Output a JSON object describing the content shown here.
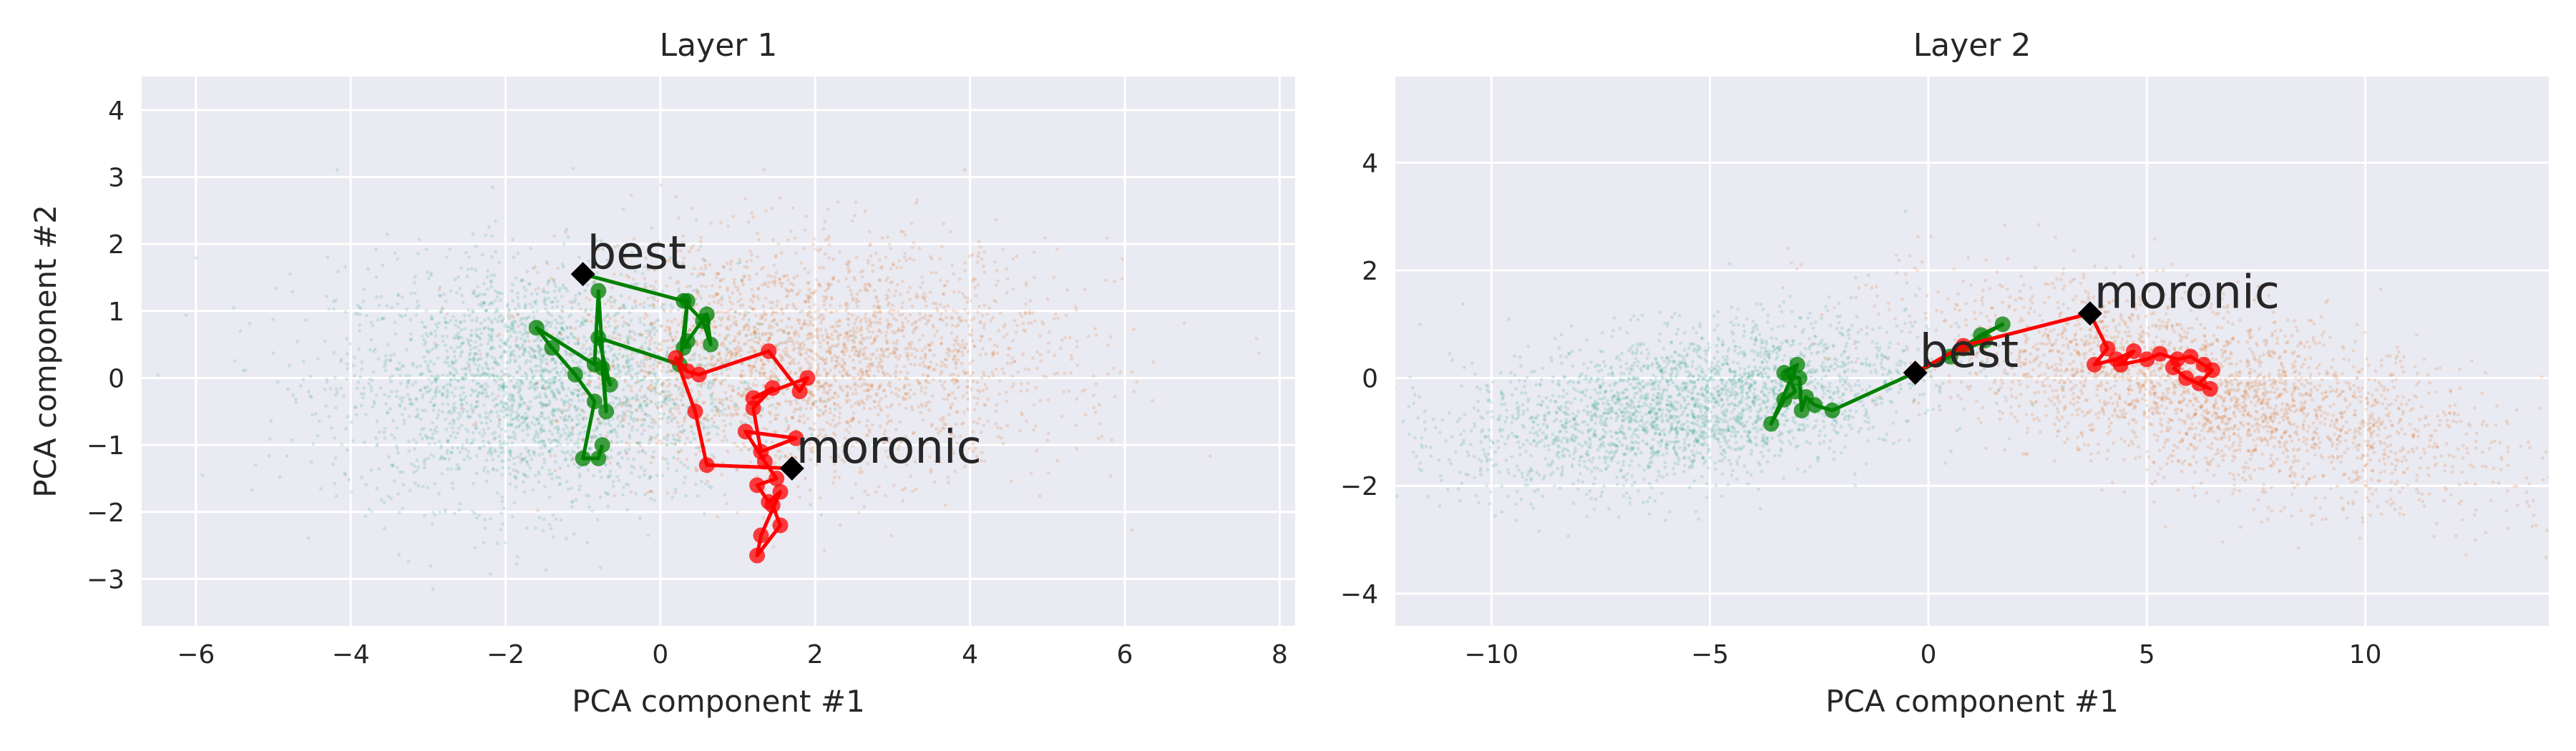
{
  "colors": {
    "axes_bg": "#EAEAF2",
    "grid": "#FFFFFF",
    "teal_cloud": "#1b9e77",
    "orange_cloud": "#d95f02",
    "green_path": "#008000",
    "red_path": "#FF0000",
    "marker": "#000000",
    "text": "#262626"
  },
  "chart_data": [
    {
      "type": "scatter",
      "title": "Layer 1",
      "xlabel": "PCA component #1",
      "ylabel": "PCA component #2",
      "xlim": [
        -6.7,
        8.2
      ],
      "ylim": [
        -3.7,
        4.5
      ],
      "xticks": [
        -6,
        -4,
        -2,
        0,
        2,
        4,
        6,
        8
      ],
      "yticks": [
        -3,
        -2,
        -1,
        0,
        1,
        2,
        3,
        4
      ],
      "grid": true,
      "clouds": [
        {
          "color": "teal",
          "center": [
            -1.6,
            -0.1
          ],
          "spread": [
            1.3,
            0.9
          ]
        },
        {
          "color": "orange",
          "center": [
            2.0,
            0.3
          ],
          "spread": [
            1.6,
            0.85
          ]
        }
      ],
      "series": [
        {
          "color": "green",
          "points": [
            [
              -1.0,
              1.55
            ],
            [
              0.3,
              1.15
            ],
            [
              0.55,
              0.85
            ],
            [
              0.65,
              0.5
            ],
            [
              0.6,
              0.95
            ],
            [
              0.35,
              0.55
            ],
            [
              0.3,
              0.45
            ],
            [
              0.35,
              1.15
            ],
            [
              0.25,
              0.2
            ],
            [
              -0.8,
              0.6
            ],
            [
              -0.65,
              -0.1
            ],
            [
              -0.75,
              0.15
            ],
            [
              -0.7,
              -0.5
            ],
            [
              -0.8,
              1.3
            ],
            [
              -0.85,
              0.2
            ],
            [
              -1.6,
              0.75
            ],
            [
              -1.4,
              0.45
            ],
            [
              -1.1,
              0.05
            ],
            [
              -0.85,
              -0.35
            ],
            [
              -1.0,
              -1.2
            ],
            [
              -0.8,
              -1.2
            ],
            [
              -0.75,
              -1.0
            ]
          ]
        },
        {
          "color": "red",
          "points": [
            [
              1.7,
              -1.35
            ],
            [
              0.6,
              -1.3
            ],
            [
              0.45,
              -0.5
            ],
            [
              0.2,
              0.3
            ],
            [
              0.35,
              0.1
            ],
            [
              0.5,
              0.05
            ],
            [
              1.4,
              0.4
            ],
            [
              1.8,
              -0.2
            ],
            [
              1.9,
              0.0
            ],
            [
              1.2,
              -0.3
            ],
            [
              1.45,
              -0.15
            ],
            [
              1.2,
              -0.45
            ],
            [
              1.3,
              -1.1
            ],
            [
              1.75,
              -0.9
            ],
            [
              1.1,
              -0.8
            ],
            [
              1.35,
              -1.25
            ],
            [
              1.5,
              -1.5
            ],
            [
              1.25,
              -1.6
            ],
            [
              1.4,
              -1.85
            ],
            [
              1.55,
              -1.7
            ],
            [
              1.3,
              -2.35
            ],
            [
              1.25,
              -2.65
            ],
            [
              1.55,
              -2.2
            ],
            [
              1.45,
              -1.9
            ]
          ]
        }
      ],
      "annotations": [
        {
          "text": "best",
          "x": -1.0,
          "y": 1.55,
          "color": "green"
        },
        {
          "text": "moronic",
          "x": 1.7,
          "y": -1.35,
          "color": "red"
        }
      ]
    },
    {
      "type": "scatter",
      "title": "Layer 2",
      "xlabel": "PCA component #1",
      "ylabel": "",
      "xlim": [
        -12.2,
        14.2
      ],
      "ylim": [
        -4.6,
        5.6
      ],
      "xticks": [
        -10,
        -5,
        0,
        5,
        10
      ],
      "yticks": [
        -4,
        -2,
        0,
        2,
        4
      ],
      "grid": true,
      "clouds": [
        {
          "color": "teal",
          "center": [
            -5.5,
            -0.5
          ],
          "spread": [
            2.6,
            0.7
          ]
        },
        {
          "color": "orange",
          "center": [
            6.5,
            -0.3
          ],
          "spread": [
            3.2,
            0.8
          ]
        }
      ],
      "series": [
        {
          "color": "green",
          "points": [
            [
              -0.3,
              0.1
            ],
            [
              1.7,
              1.0
            ],
            [
              1.2,
              0.8
            ],
            [
              0.8,
              0.55
            ],
            [
              1.3,
              0.7
            ],
            [
              0.5,
              0.4
            ],
            [
              -2.2,
              -0.6
            ],
            [
              -2.6,
              -0.5
            ],
            [
              -2.8,
              -0.35
            ],
            [
              -2.9,
              -0.6
            ],
            [
              -2.95,
              0.0
            ],
            [
              -3.2,
              0.05
            ],
            [
              -3.05,
              -0.25
            ],
            [
              -3.3,
              -0.4
            ],
            [
              -3.6,
              -0.85
            ],
            [
              -3.0,
              0.25
            ],
            [
              -3.3,
              0.1
            ]
          ]
        },
        {
          "color": "red",
          "points": [
            [
              -0.3,
              0.1
            ],
            [
              0.8,
              0.6
            ],
            [
              3.7,
              1.2
            ],
            [
              4.1,
              0.55
            ],
            [
              3.8,
              0.25
            ],
            [
              4.3,
              0.35
            ],
            [
              4.7,
              0.5
            ],
            [
              4.4,
              0.25
            ],
            [
              5.0,
              0.35
            ],
            [
              5.3,
              0.45
            ],
            [
              5.7,
              0.35
            ],
            [
              6.0,
              0.4
            ],
            [
              6.3,
              0.25
            ],
            [
              6.5,
              0.15
            ],
            [
              6.2,
              -0.1
            ],
            [
              6.45,
              -0.2
            ],
            [
              5.9,
              0.0
            ],
            [
              5.6,
              0.2
            ]
          ]
        }
      ],
      "annotations": [
        {
          "text": "best",
          "x": -0.3,
          "y": 0.1,
          "color": "green"
        },
        {
          "text": "moronic",
          "x": 3.7,
          "y": 1.2,
          "color": "red"
        }
      ]
    }
  ]
}
